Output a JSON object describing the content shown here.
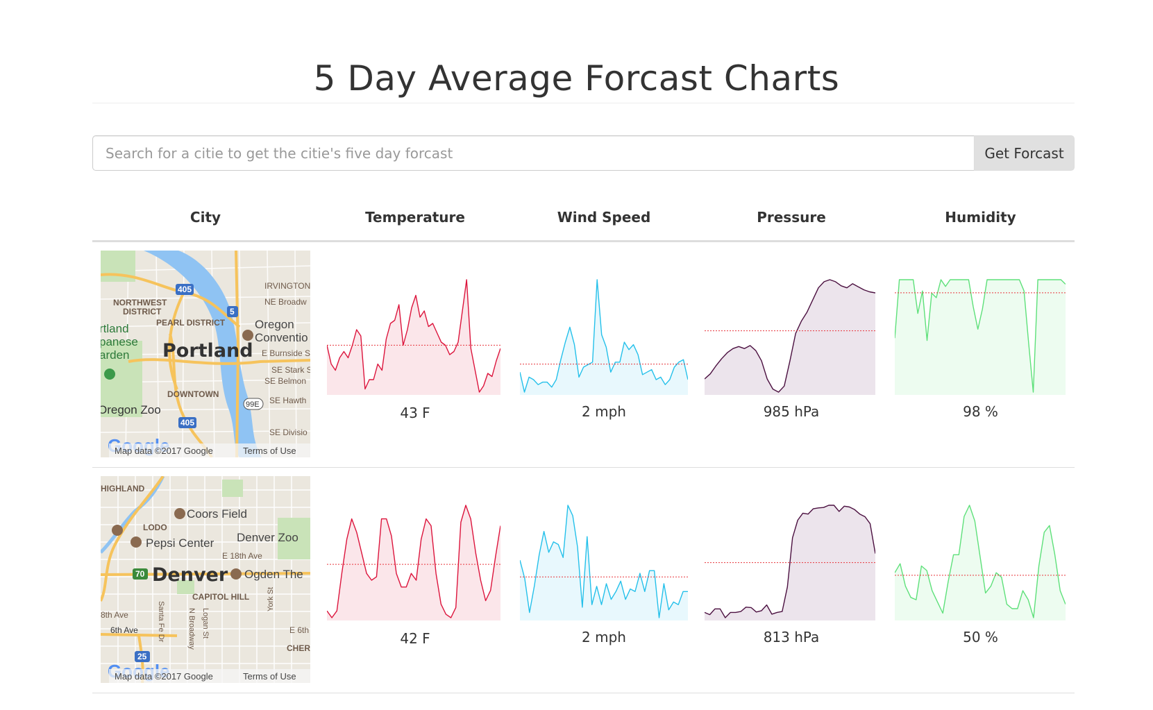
{
  "page": {
    "title": "5 Day Average Forcast Charts"
  },
  "search": {
    "placeholder": "Search for a citie to get the citie's five day forcast",
    "value": "",
    "button_label": "Get Forcast"
  },
  "table": {
    "headers": [
      "City",
      "Temperature",
      "Wind Speed",
      "Pressure",
      "Humidity"
    ]
  },
  "colors": {
    "temperature_line": "#dc143c",
    "temperature_fill": "#fbe6ea",
    "wind_line": "#24c0ea",
    "wind_fill": "#e8f8fd",
    "pressure_line": "#4b1040",
    "pressure_fill": "#ece4ec",
    "humidity_line": "#5ee07a",
    "humidity_fill": "#edfcf0",
    "average_line": "#e8333a"
  },
  "rows": [
    {
      "map": {
        "city_label": "Portland",
        "labels": [
          "IRVINGTON",
          "NE Broadw",
          "NORTHWEST",
          "DISTRICT",
          "PEARL DISTRICT",
          "Oregon",
          "Conventio",
          "rtland",
          "panese",
          "arden",
          "E Burnside S",
          "SE Stark S",
          "SE Belmon",
          "DOWNTOWN",
          "SE Hawth",
          "Oregon Zoo",
          "SE Divisio"
        ],
        "shields": [
          "405",
          "5",
          "405",
          "99E"
        ],
        "attribution": "Map data ©2017 Google",
        "terms": "Terms of Use",
        "logo": "Google"
      },
      "temperature": {
        "label": "43 F",
        "values": [
          46,
          40,
          38,
          42,
          44,
          42,
          46,
          51,
          49,
          32,
          35,
          35,
          40,
          38,
          48,
          53,
          54,
          59,
          46,
          51,
          58,
          62,
          55,
          57,
          52,
          53,
          50,
          47,
          46,
          43,
          44,
          47,
          57,
          67,
          45,
          38,
          31,
          33,
          37,
          36,
          41,
          45
        ]
      },
      "wind": {
        "label": "2 mph",
        "values": [
          1.8,
          1.0,
          1.6,
          1.5,
          1.3,
          1.4,
          1.4,
          1.2,
          1.5,
          2.3,
          3.0,
          3.6,
          2.9,
          1.6,
          2.0,
          2.1,
          2.2,
          5.5,
          3.3,
          2.8,
          1.8,
          2.2,
          2.2,
          3.0,
          2.7,
          2.9,
          2.5,
          1.7,
          1.8,
          1.9,
          1.5,
          1.6,
          1.3,
          1.5,
          2.0,
          2.2,
          2.3,
          1.5
        ]
      },
      "pressure": {
        "label": "985 hPa",
        "values": [
          950,
          955,
          963,
          970,
          976,
          980,
          982,
          980,
          983,
          978,
          968,
          950,
          940,
          937,
          943,
          968,
          995,
          1007,
          1016,
          1028,
          1040,
          1046,
          1048,
          1046,
          1042,
          1040,
          1044,
          1041,
          1038,
          1036,
          1035
        ]
      },
      "humidity": {
        "label": "98 %",
        "values": [
          74,
          100,
          100,
          100,
          100,
          85,
          95,
          73,
          94,
          92,
          100,
          97,
          100,
          100,
          100,
          100,
          100,
          88,
          78,
          87,
          100,
          100,
          100,
          100,
          100,
          100,
          100,
          100,
          95,
          72,
          50,
          100,
          100,
          100,
          100,
          100,
          100,
          98
        ]
      }
    },
    {
      "map": {
        "city_label": "Denver",
        "labels": [
          "HIGHLAND",
          "Coors Field",
          "LODO",
          "Pepsi Center",
          "Denver Zoo",
          "E 18th Ave",
          "Ogden The",
          "CAPITOL HILL",
          "8th Ave",
          "6th Ave",
          "E 6th",
          "CHER",
          "Santa Fe Dr",
          "N Broadway",
          "Logan St",
          "York St"
        ],
        "shields": [
          "70",
          "25"
        ],
        "attribution": "Map data ©2017 Google",
        "terms": "Terms of Use",
        "logo": "Google"
      },
      "temperature": {
        "label": "42 F",
        "values": [
          31,
          29,
          31,
          42,
          52,
          58,
          54,
          48,
          42,
          40,
          41,
          58,
          58,
          53,
          42,
          38,
          38,
          42,
          40,
          52,
          58,
          56,
          42,
          33,
          30,
          29,
          32,
          57,
          62,
          58,
          48,
          40,
          34,
          37,
          47,
          56
        ]
      },
      "wind": {
        "label": "2 mph",
        "values": [
          3.0,
          2.3,
          1.0,
          2.0,
          3.2,
          4.1,
          3.3,
          3.7,
          3.6,
          3.1,
          5.1,
          4.7,
          3.5,
          1.2,
          3.9,
          1.3,
          2.0,
          1.3,
          2.1,
          1.5,
          1.8,
          2.2,
          1.5,
          1.9,
          1.8,
          2.5,
          1.8,
          2.6,
          2.6,
          0.8,
          2.1,
          1.1,
          1.4,
          1.3,
          1.8,
          1.8
        ]
      },
      "pressure": {
        "label": "813 hPa",
        "values": [
          660,
          655,
          668,
          668,
          648,
          660,
          660,
          662,
          672,
          671,
          661,
          664,
          677,
          656,
          660,
          662,
          718,
          830,
          870,
          886,
          884,
          896,
          898,
          899,
          904,
          904,
          890,
          902,
          900,
          894,
          884,
          878,
          862,
          794
        ]
      },
      "humidity": {
        "label": "50 %",
        "values": [
          50,
          54,
          44,
          39,
          38,
          53,
          51,
          42,
          37,
          32,
          46,
          58,
          58,
          75,
          80,
          73,
          57,
          41,
          44,
          50,
          48,
          36,
          34,
          34,
          42,
          38,
          30,
          53,
          68,
          71,
          58,
          42,
          36
        ]
      }
    }
  ]
}
